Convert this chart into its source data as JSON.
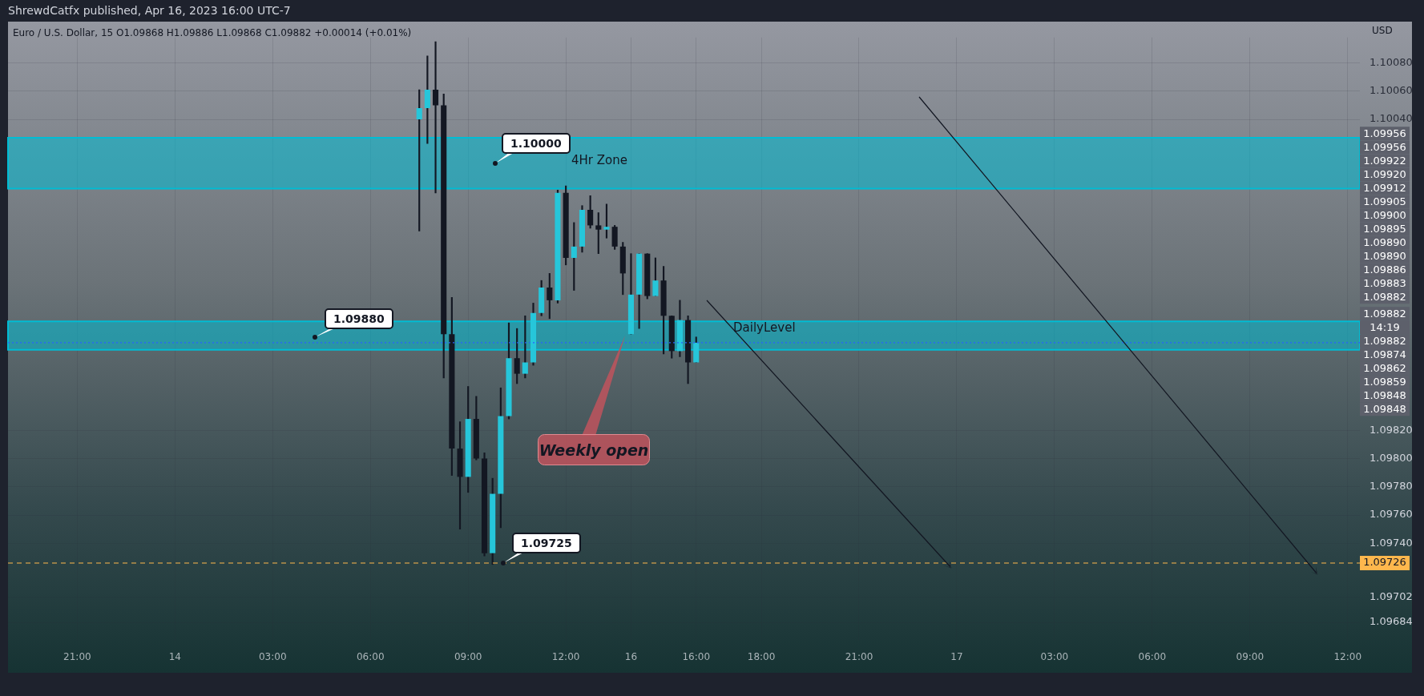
{
  "chart_data": {
    "type": "candlestick",
    "title": "Euro / U.S. Dollar, 15 O1.09868 H1.09886 L1.09868 C1.09882 +0.00014 (+0.01%)",
    "subtitle": "ShrewdCatfx published, Apr 16, 2023 16:00 UTC-7",
    "ylabel": "USD",
    "categories": [
      null,
      null,
      null,
      null,
      null,
      null,
      null,
      null,
      "21:00",
      null,
      null,
      null,
      null,
      null,
      null,
      null,
      null,
      null,
      null,
      null,
      "14",
      null,
      null,
      null,
      null,
      null,
      null,
      null,
      null,
      null,
      null,
      null,
      "03:00",
      null,
      null,
      null,
      null,
      null,
      null,
      null,
      null,
      null,
      null,
      null,
      "06:00",
      null,
      null,
      null,
      null,
      null,
      null,
      null,
      null,
      null,
      null,
      null,
      "09:00",
      null,
      null,
      null,
      null,
      null,
      null,
      null,
      null,
      null,
      null,
      null,
      "12:00",
      null,
      null,
      null,
      null,
      null,
      null,
      null,
      "16",
      null,
      null,
      null,
      null,
      null,
      null,
      null,
      "16:00",
      null,
      null,
      null,
      null,
      null,
      null,
      null,
      "18:00",
      null,
      null,
      null,
      null,
      null,
      null,
      null,
      null,
      null,
      null,
      null,
      "21:00",
      null,
      null,
      null,
      null,
      null,
      null,
      null,
      null,
      null,
      null,
      null,
      "17",
      null,
      null,
      null,
      null,
      null,
      null,
      null,
      null,
      null,
      null,
      null,
      "03:00",
      null,
      null,
      null,
      null,
      null,
      null,
      null,
      null,
      null,
      null,
      null,
      "06:00",
      null,
      null,
      null,
      null,
      null,
      null,
      null,
      null,
      null,
      null,
      null,
      "09:00",
      null,
      null,
      null,
      null,
      null,
      null,
      null,
      null,
      null,
      null,
      null,
      "12:00",
      null
    ],
    "ohlc": [
      null,
      null,
      null,
      null,
      null,
      null,
      null,
      null,
      null,
      null,
      null,
      null,
      null,
      null,
      null,
      null,
      null,
      null,
      null,
      null,
      null,
      null,
      null,
      null,
      null,
      null,
      null,
      null,
      null,
      null,
      null,
      null,
      null,
      null,
      null,
      null,
      null,
      null,
      null,
      null,
      null,
      null,
      null,
      null,
      null,
      null,
      null,
      null,
      null,
      null,
      [
        1.1004,
        1.10061,
        1.09961,
        1.10048
      ],
      [
        1.10048,
        1.10085,
        1.10023,
        1.10061
      ],
      [
        1.10061,
        1.10095,
        1.09988,
        1.1005
      ],
      [
        1.1005,
        1.10058,
        1.09857,
        1.09888
      ],
      [
        1.09888,
        1.09914,
        1.09788,
        1.09807
      ],
      [
        1.09807,
        1.09826,
        1.0975,
        1.09787
      ],
      [
        1.09787,
        1.09851,
        1.09776,
        1.09828
      ],
      [
        1.09828,
        1.09844,
        1.09799,
        1.098
      ],
      [
        1.098,
        1.09804,
        1.09731,
        1.09733
      ],
      [
        1.09733,
        1.09786,
        1.09725,
        1.09775
      ],
      [
        1.09775,
        1.0985,
        1.09751,
        1.0983
      ],
      [
        1.0983,
        1.09896,
        1.09828,
        1.09871
      ],
      [
        1.09871,
        1.09892,
        1.09853,
        1.0986
      ],
      [
        1.0986,
        1.09901,
        1.09857,
        1.09868
      ],
      [
        1.09868,
        1.0991,
        1.09866,
        1.09903
      ],
      [
        1.09903,
        1.09926,
        1.09901,
        1.09921
      ],
      [
        1.09921,
        1.09931,
        1.09899,
        1.09912
      ],
      [
        1.09912,
        1.0999,
        1.0991,
        1.09988
      ],
      [
        1.09988,
        1.09993,
        1.09937,
        1.09942
      ],
      [
        1.09942,
        1.09967,
        1.09919,
        1.0995
      ],
      [
        1.0995,
        1.09979,
        1.09946,
        1.09976
      ],
      [
        1.09976,
        1.09986,
        1.09963,
        1.09965
      ],
      [
        1.09965,
        1.09974,
        1.09945,
        1.09962
      ],
      [
        1.09962,
        1.0998,
        1.09956,
        1.09964
      ],
      [
        1.09964,
        1.09965,
        1.09948,
        1.0995
      ],
      [
        1.0995,
        1.09953,
        1.09916,
        1.09931
      ],
      [
        1.09888,
        1.09945,
        1.09888,
        1.09916
      ],
      [
        1.09916,
        1.09945,
        1.09892,
        1.09945
      ],
      [
        1.09945,
        1.09945,
        1.09913,
        1.09915
      ],
      [
        1.09915,
        1.09942,
        1.09915,
        1.09926
      ],
      [
        1.09926,
        1.09936,
        1.09874,
        1.09901
      ],
      [
        1.09901,
        1.09901,
        1.09871,
        1.09876
      ],
      [
        1.09876,
        1.09912,
        1.09872,
        1.09898
      ],
      [
        1.09898,
        1.09901,
        1.09853,
        1.09868
      ],
      [
        1.09868,
        1.09886,
        1.09868,
        1.09882
      ],
      null,
      null,
      null,
      null,
      null,
      null,
      null,
      null,
      null,
      null,
      null,
      null,
      null,
      null,
      null,
      null,
      null,
      null,
      null,
      null,
      null,
      null,
      null,
      null,
      null,
      null,
      null,
      null,
      null,
      null,
      null,
      null,
      null,
      null,
      null,
      null,
      null,
      null,
      null,
      null,
      null,
      null,
      null,
      null,
      null,
      null,
      null,
      null,
      null,
      null,
      null,
      null,
      null,
      null,
      null,
      null,
      null,
      null,
      null,
      null,
      null,
      null,
      null,
      null,
      null,
      null,
      null,
      null,
      null,
      null,
      null,
      null,
      null,
      null,
      null,
      null,
      null,
      null,
      null,
      null,
      null
    ],
    "colors": [
      null,
      null,
      null,
      null,
      null,
      null,
      null,
      null,
      null,
      null,
      null,
      null,
      null,
      null,
      null,
      null,
      null,
      null,
      null,
      null,
      null,
      null,
      null,
      null,
      null,
      null,
      null,
      null,
      null,
      null,
      null,
      null,
      null,
      null,
      null,
      null,
      null,
      null,
      null,
      null,
      null,
      null,
      null,
      null,
      null,
      null,
      null,
      null,
      null,
      null,
      "#26c6da",
      "#26c6da",
      "#131722",
      "#131722",
      "#131722",
      "#131722",
      "#26c6da",
      "#131722",
      "#131722",
      "#26c6da",
      "#26c6da",
      "#26c6da",
      "#131722",
      "#26c6da",
      "#26c6da",
      "#26c6da",
      "#131722",
      "#26c6da",
      "#131722",
      "#26c6da",
      "#26c6da",
      "#131722",
      "#131722",
      "#26c6da",
      "#131722",
      "#131722",
      "#26c6da",
      "#26c6da",
      "#131722",
      "#26c6da",
      "#131722",
      "#131722",
      "#26c6da",
      "#131722",
      "#26c6da",
      null,
      null,
      null,
      null,
      null,
      null,
      null,
      null,
      null,
      null,
      null,
      null,
      null,
      null,
      null,
      null,
      null,
      null,
      null,
      null,
      null,
      null,
      null,
      null,
      null,
      null,
      null,
      null,
      null,
      null,
      null,
      null,
      null,
      null,
      null,
      null,
      null,
      null,
      null,
      null,
      null,
      null,
      null,
      null,
      null,
      null,
      null,
      null,
      null,
      null,
      null,
      null,
      null,
      null,
      null,
      null,
      null,
      null,
      null,
      null,
      null,
      null,
      null,
      null,
      null,
      null,
      null,
      null,
      null,
      null,
      null,
      null,
      null,
      null,
      null,
      null,
      null,
      null,
      null,
      null,
      null
    ],
    "ylim": [
      1.09671,
      1.10098
    ],
    "yticks": [
      {
        "value": 1.1008,
        "label": "1.10080"
      },
      {
        "value": 1.1006,
        "label": "1.10060"
      },
      {
        "value": 1.1004,
        "label": "1.10040"
      },
      {
        "value": 1.0982,
        "label": "1.09820"
      },
      {
        "value": 1.098,
        "label": "1.09800"
      },
      {
        "value": 1.0978,
        "label": "1.09780"
      },
      {
        "value": 1.0976,
        "label": "1.09760"
      },
      {
        "value": 1.0974,
        "label": "1.09740"
      },
      {
        "value": 1.09702,
        "label": "1.09702"
      },
      {
        "value": 1.09684,
        "label": "1.09684"
      }
    ],
    "grid": true,
    "bands": [
      {
        "axis": "y",
        "from": 1.09991,
        "to": 1.10027,
        "label": "4Hr Zone",
        "color": "#00bcd4"
      },
      {
        "axis": "y",
        "from": 1.09877,
        "to": 1.09897,
        "label": "DailyLevel",
        "color": "#00bcd4"
      }
    ],
    "ref_lines": [
      {
        "axis": "y",
        "value": 1.09726,
        "label": "1.09726",
        "color": "#ffb74d",
        "line_style": "dashed"
      },
      {
        "axis": "y",
        "value": 1.09882,
        "color": "#2962ff",
        "line_style": "dotted"
      }
    ],
    "annotations": [
      "1.10000",
      "1.09880",
      "1.09725",
      "Weekly open",
      "1.09956",
      "1.09956",
      "1.09922",
      "1.09920",
      "1.09912",
      "1.09905",
      "1.09900",
      "1.09895",
      "1.09890",
      "1.09890",
      "1.09886",
      "1.09883",
      "1.09882",
      "1.09882",
      "14:19",
      "1.09882",
      "1.09874",
      "1.09862",
      "1.09859",
      "1.09848",
      "1.09848"
    ]
  }
}
